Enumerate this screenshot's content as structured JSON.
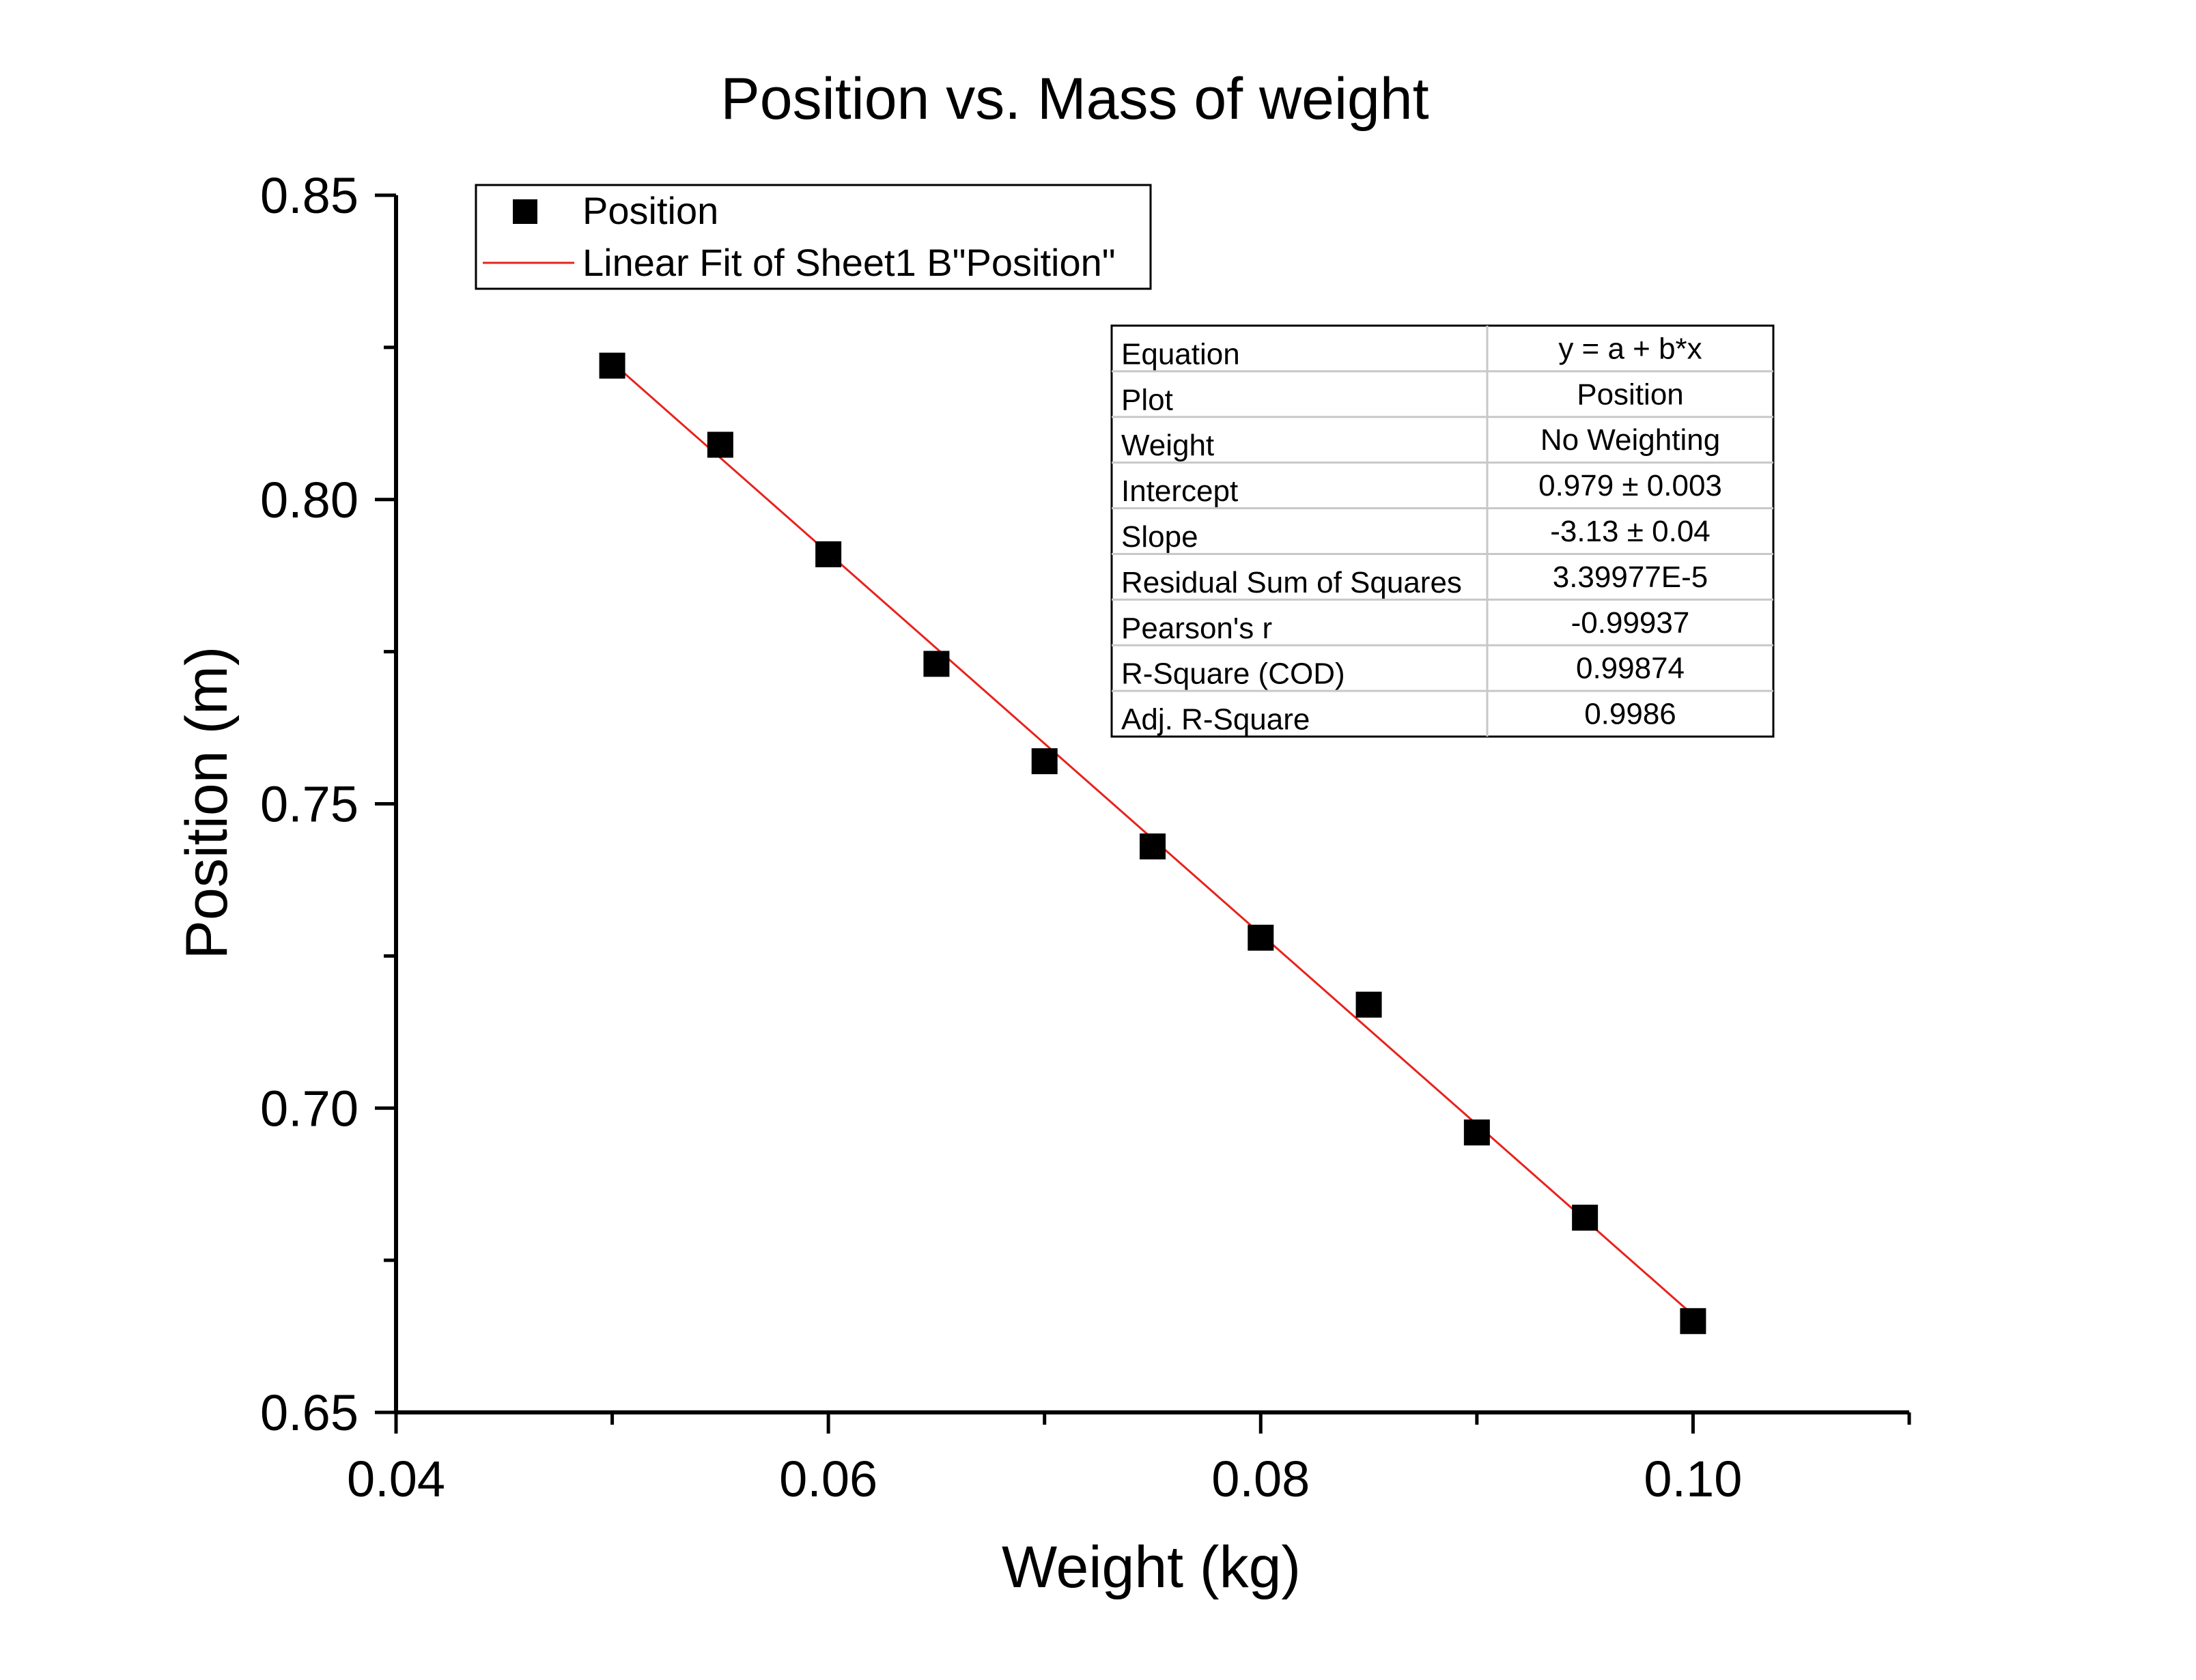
{
  "chart_data": {
    "type": "scatter",
    "title": "Position vs. Mass of weight",
    "xlabel": "Weight (kg)",
    "ylabel": "Position (m)",
    "xlim": [
      0.04,
      0.11
    ],
    "ylim": [
      0.65,
      0.85
    ],
    "x_ticks": [
      0.04,
      0.06,
      0.08,
      0.1
    ],
    "x_tick_labels": [
      "0.04",
      "0.06",
      "0.08",
      "0.10"
    ],
    "x_minor_ticks": [
      0.05,
      0.07,
      0.09,
      0.11
    ],
    "y_ticks": [
      0.65,
      0.7,
      0.75,
      0.8,
      0.85
    ],
    "y_tick_labels": [
      "0.65",
      "0.70",
      "0.75",
      "0.80",
      "0.85"
    ],
    "y_minor_ticks": [
      0.675,
      0.725,
      0.775,
      0.825
    ],
    "grid": false,
    "legend_position": "top-left",
    "series": [
      {
        "name": "Position",
        "marker": "square",
        "color": "#000000",
        "x": [
          0.05,
          0.055,
          0.06,
          0.065,
          0.07,
          0.075,
          0.08,
          0.085,
          0.09,
          0.095,
          0.1
        ],
        "y": [
          0.822,
          0.809,
          0.791,
          0.773,
          0.757,
          0.743,
          0.728,
          0.717,
          0.696,
          0.682,
          0.665
        ]
      }
    ],
    "fit": {
      "name": "Linear Fit of Sheet1 B\"Position\"",
      "color": "#e8221c",
      "intercept": 0.979,
      "slope": -3.13,
      "x_range": [
        0.05,
        0.1
      ]
    },
    "stats_table": [
      {
        "label": "Equation",
        "value": "y = a + b*x"
      },
      {
        "label": "Plot",
        "value": "Position"
      },
      {
        "label": "Weight",
        "value": "No Weighting"
      },
      {
        "label": "Intercept",
        "value": "0.979 ± 0.003"
      },
      {
        "label": "Slope",
        "value": "-3.13 ± 0.04"
      },
      {
        "label": "Residual Sum of Squares",
        "value": "3.39977E-5"
      },
      {
        "label": "Pearson's r",
        "value": "-0.99937"
      },
      {
        "label": "R-Square (COD)",
        "value": "0.99874"
      },
      {
        "label": "Adj. R-Square",
        "value": "0.9986"
      }
    ]
  }
}
